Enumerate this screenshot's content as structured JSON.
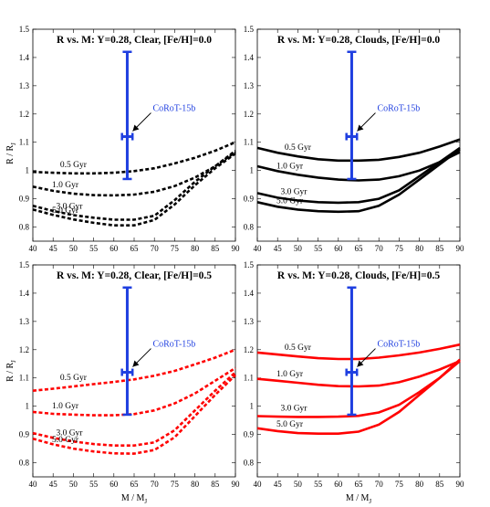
{
  "figure": {
    "panels_ylabel_rows": [
      {
        "main": "R / R",
        "sub": "J"
      },
      {
        "main": "R / R",
        "sub": "J"
      }
    ],
    "xlabel": {
      "main": "M / M",
      "sub": "J"
    }
  },
  "chart_data": [
    {
      "type": "line",
      "title": "R vs. M: Y=0.28, Clear, [Fe/H]=0.0",
      "xlim": [
        40,
        90
      ],
      "ylim": [
        0.75,
        1.5
      ],
      "xticks": [
        40,
        45,
        50,
        55,
        60,
        65,
        70,
        75,
        80,
        85,
        90
      ],
      "yticks": [
        0.8,
        0.9,
        1,
        1.1,
        1.2,
        1.3,
        1.4,
        1.5
      ],
      "xlabel": "",
      "ylabel": "R / R_J",
      "line_style": "dashed",
      "color": "#000000",
      "series": [
        {
          "name": "0.5 Gyr",
          "x": [
            40,
            45,
            50,
            55,
            60,
            65,
            70,
            75,
            80,
            85,
            90
          ],
          "y": [
            0.995,
            0.992,
            0.99,
            0.99,
            0.992,
            0.998,
            1.008,
            1.025,
            1.045,
            1.07,
            1.1
          ]
        },
        {
          "name": "1.0 Gyr",
          "x": [
            40,
            45,
            50,
            55,
            60,
            65,
            70,
            75,
            80,
            85,
            90
          ],
          "y": [
            0.943,
            0.928,
            0.918,
            0.913,
            0.912,
            0.915,
            0.925,
            0.945,
            0.975,
            1.015,
            1.07
          ]
        },
        {
          "name": "3.0 Gyr",
          "x": [
            40,
            45,
            50,
            55,
            60,
            65,
            70,
            75,
            80,
            85,
            90
          ],
          "y": [
            0.875,
            0.857,
            0.842,
            0.833,
            0.826,
            0.826,
            0.84,
            0.895,
            0.96,
            1.015,
            1.065
          ]
        },
        {
          "name": "5.0 Gyr",
          "x": [
            40,
            45,
            50,
            55,
            60,
            65,
            70,
            75,
            80,
            85,
            90
          ],
          "y": [
            0.862,
            0.843,
            0.827,
            0.815,
            0.806,
            0.806,
            0.825,
            0.88,
            0.948,
            1.008,
            1.06
          ]
        }
      ],
      "observation": {
        "name": "CoRoT-15b",
        "x": 63.3,
        "y": 1.12,
        "yerr": [
          0.97,
          1.42
        ],
        "xerr": [
          62.0,
          64.6
        ],
        "color": "#1f3fe0"
      }
    },
    {
      "type": "line",
      "title": "R vs. M: Y=0.28, Clouds, [Fe/H]=0.0",
      "xlim": [
        40,
        90
      ],
      "ylim": [
        0.75,
        1.5
      ],
      "xticks": [
        40,
        45,
        50,
        55,
        60,
        65,
        70,
        75,
        80,
        85,
        90
      ],
      "yticks": [
        0.8,
        0.9,
        1,
        1.1,
        1.2,
        1.3,
        1.4,
        1.5
      ],
      "xlabel": "",
      "ylabel": "",
      "line_style": "solid",
      "color": "#000000",
      "series": [
        {
          "name": "0.5 Gyr",
          "x": [
            40,
            45,
            50,
            55,
            60,
            65,
            70,
            75,
            80,
            85,
            90
          ],
          "y": [
            1.08,
            1.063,
            1.05,
            1.04,
            1.035,
            1.035,
            1.038,
            1.048,
            1.063,
            1.085,
            1.11
          ]
        },
        {
          "name": "1.0 Gyr",
          "x": [
            40,
            45,
            50,
            55,
            60,
            65,
            70,
            75,
            80,
            85,
            90
          ],
          "y": [
            1.015,
            0.998,
            0.985,
            0.975,
            0.968,
            0.965,
            0.968,
            0.98,
            1.0,
            1.03,
            1.065
          ]
        },
        {
          "name": "3.0 Gyr",
          "x": [
            40,
            45,
            50,
            55,
            60,
            65,
            70,
            75,
            80,
            85,
            90
          ],
          "y": [
            0.92,
            0.904,
            0.894,
            0.888,
            0.886,
            0.888,
            0.9,
            0.93,
            0.98,
            1.03,
            1.08
          ]
        },
        {
          "name": "5.0 Gyr",
          "x": [
            40,
            45,
            50,
            55,
            60,
            65,
            70,
            75,
            80,
            85,
            90
          ],
          "y": [
            0.888,
            0.872,
            0.862,
            0.856,
            0.854,
            0.856,
            0.875,
            0.915,
            0.968,
            1.022,
            1.075
          ]
        }
      ],
      "observation": {
        "name": "CoRoT-15b",
        "x": 63.3,
        "y": 1.12,
        "yerr": [
          0.97,
          1.42
        ],
        "xerr": [
          62.0,
          64.6
        ],
        "color": "#1f3fe0"
      }
    },
    {
      "type": "line",
      "title": "R vs. M: Y=0.28, Clear, [Fe/H]=0.5",
      "xlim": [
        40,
        90
      ],
      "ylim": [
        0.75,
        1.5
      ],
      "xticks": [
        40,
        45,
        50,
        55,
        60,
        65,
        70,
        75,
        80,
        85,
        90
      ],
      "yticks": [
        0.8,
        0.9,
        1,
        1.1,
        1.2,
        1.3,
        1.4,
        1.5
      ],
      "xlabel": "M / M_J",
      "ylabel": "R / R_J",
      "line_style": "dashed",
      "color": "#ff0000",
      "series": [
        {
          "name": "0.5 Gyr",
          "x": [
            40,
            45,
            50,
            55,
            60,
            65,
            70,
            75,
            80,
            85,
            90
          ],
          "y": [
            1.055,
            1.062,
            1.07,
            1.078,
            1.086,
            1.095,
            1.108,
            1.125,
            1.148,
            1.172,
            1.2
          ]
        },
        {
          "name": "1.0 Gyr",
          "x": [
            40,
            45,
            50,
            55,
            60,
            65,
            70,
            75,
            80,
            85,
            90
          ],
          "y": [
            0.98,
            0.973,
            0.97,
            0.968,
            0.968,
            0.972,
            0.985,
            1.01,
            1.045,
            1.09,
            1.135
          ]
        },
        {
          "name": "3.0 Gyr",
          "x": [
            40,
            45,
            50,
            55,
            60,
            65,
            70,
            75,
            80,
            85,
            90
          ],
          "y": [
            0.905,
            0.888,
            0.875,
            0.866,
            0.861,
            0.861,
            0.872,
            0.915,
            0.985,
            1.055,
            1.12
          ]
        },
        {
          "name": "5.0 Gyr",
          "x": [
            40,
            45,
            50,
            55,
            60,
            65,
            70,
            75,
            80,
            85,
            90
          ],
          "y": [
            0.885,
            0.865,
            0.85,
            0.84,
            0.833,
            0.832,
            0.845,
            0.89,
            0.965,
            1.04,
            1.11
          ]
        }
      ],
      "observation": {
        "name": "CoRoT-15b",
        "x": 63.3,
        "y": 1.12,
        "yerr": [
          0.97,
          1.42
        ],
        "xerr": [
          62.0,
          64.6
        ],
        "color": "#1f3fe0"
      }
    },
    {
      "type": "line",
      "title": "R vs. M: Y=0.28, Clouds, [Fe/H]=0.5",
      "xlim": [
        40,
        90
      ],
      "ylim": [
        0.75,
        1.5
      ],
      "xticks": [
        40,
        45,
        50,
        55,
        60,
        65,
        70,
        75,
        80,
        85,
        90
      ],
      "yticks": [
        0.8,
        0.9,
        1,
        1.1,
        1.2,
        1.3,
        1.4,
        1.5
      ],
      "xlabel": "M / M_J",
      "ylabel": "",
      "line_style": "solid",
      "color": "#ff0000",
      "series": [
        {
          "name": "0.5 Gyr",
          "x": [
            40,
            45,
            50,
            55,
            60,
            65,
            70,
            75,
            80,
            85,
            90
          ],
          "y": [
            1.19,
            1.183,
            1.176,
            1.17,
            1.167,
            1.167,
            1.172,
            1.18,
            1.19,
            1.203,
            1.218
          ]
        },
        {
          "name": "1.0 Gyr",
          "x": [
            40,
            45,
            50,
            55,
            60,
            65,
            70,
            75,
            80,
            85,
            90
          ],
          "y": [
            1.097,
            1.09,
            1.083,
            1.076,
            1.071,
            1.07,
            1.073,
            1.085,
            1.105,
            1.13,
            1.16
          ]
        },
        {
          "name": "3.0 Gyr",
          "x": [
            40,
            45,
            50,
            55,
            60,
            65,
            70,
            75,
            80,
            85,
            90
          ],
          "y": [
            0.965,
            0.963,
            0.962,
            0.962,
            0.963,
            0.966,
            0.978,
            1.005,
            1.05,
            1.1,
            1.165
          ]
        },
        {
          "name": "5.0 Gyr",
          "x": [
            40,
            45,
            50,
            55,
            60,
            65,
            70,
            75,
            80,
            85,
            90
          ],
          "y": [
            0.922,
            0.912,
            0.905,
            0.903,
            0.903,
            0.91,
            0.935,
            0.98,
            1.04,
            1.1,
            1.16
          ]
        }
      ],
      "observation": {
        "name": "CoRoT-15b",
        "x": 63.3,
        "y": 1.12,
        "yerr": [
          0.97,
          1.42
        ],
        "xerr": [
          62.0,
          64.6
        ],
        "color": "#1f3fe0"
      }
    }
  ]
}
